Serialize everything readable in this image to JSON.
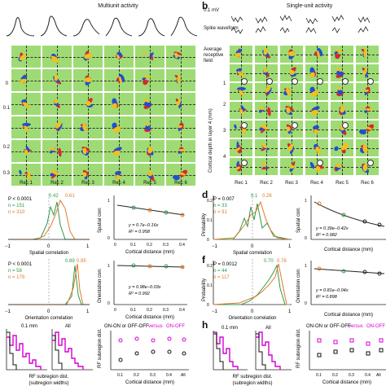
{
  "panel_a": {
    "label": "a",
    "title": "Multiunit activity",
    "depth_labels": [
      "0",
      "0.1",
      "0.2",
      "0.3"
    ],
    "columns": [
      "Rec 1",
      "Rec 2",
      "Rec 3",
      "Rec 4",
      "Rec 5",
      "Rec 6"
    ]
  },
  "panel_b": {
    "label": "b",
    "title": "Single-unit activity",
    "scale_label": "0.1 mV",
    "row1_label": "Spike waveform",
    "row2_label": "Average receptive field",
    "depth_axis_label": "Cortical depth in layer 4 (mm)",
    "unit_numbers": [
      "1",
      "2",
      "3",
      "4"
    ],
    "columns": [
      "Rec 1",
      "Rec 2",
      "Rec 3",
      "Rec 4",
      "Rec 5",
      "Rec 6"
    ]
  },
  "panel_c": {
    "label": "c",
    "stats": {
      "p": "P < 0.0001",
      "n1": "n = 151",
      "n2": "n = 310"
    },
    "peak1": "0.42",
    "peak2": "0.61",
    "xlabel": "Spatial correlation",
    "ticks": [
      "−1",
      "0",
      "1"
    ]
  },
  "panel_c2": {
    "ylabel": "Spatial corr.",
    "eq": "y = 0.7e−0.16x",
    "r2": "R² = 0.958",
    "xlabel": "Cortical distance (mm)",
    "xticks": [
      "0",
      "0.1",
      "0.2",
      "0.3",
      "0.4"
    ],
    "yticks": [
      "0",
      "0.5",
      "1"
    ]
  },
  "panel_d": {
    "label": "d",
    "stats": {
      "p": "P = 0.007",
      "n1": "n = 33",
      "n2": "n = 91"
    },
    "peak1": "0.1",
    "peak2": "0.26",
    "ylabel": "Probability",
    "xlabel": "Spatial correlation",
    "yticks": [
      "0",
      "0.1",
      "0.2"
    ],
    "ticks": [
      "−1",
      "0",
      "1"
    ]
  },
  "panel_d2": {
    "ylabel": "Spatial corr.",
    "eq": "y = 0.39e−0.42x",
    "r2": "R² = 0.982",
    "xlabel": "Cortical distance (mm)",
    "yticks": [
      "0",
      "0.5",
      "1"
    ]
  },
  "panel_e": {
    "stats": {
      "p": "P < 0.0001",
      "n1": "n = 58",
      "n2": "n = 178"
    },
    "peak1": "0.89",
    "peak2": "0.95",
    "xlabel": "Orientation correlation",
    "ticks": [
      "−1",
      "0",
      "1"
    ]
  },
  "panel_e2": {
    "ylabel": "Orientation corr.",
    "eq": "y = 0.98e−0.03x",
    "r2": "R² = 0.992",
    "xlabel": "Cortical distance (mm)",
    "xticks": [
      "0",
      "0.1",
      "0.2",
      "0.3",
      "0.4"
    ],
    "yticks": [
      "0",
      "0.5",
      "1"
    ]
  },
  "panel_f": {
    "label": "f",
    "stats": {
      "p": "P = 0.0012",
      "n1": "n = 44",
      "n2": "n = 117"
    },
    "peak1": "0.70",
    "peak2": "0.76",
    "ylabel": "Probability",
    "xlabel": "Orientation correlation",
    "yticks": [
      "0",
      "0.1",
      "0.2"
    ],
    "ticks": [
      "−1",
      "0",
      "1"
    ]
  },
  "panel_f2": {
    "ylabel": "Orientation corr.",
    "eq": "y = 0.81e−0.04x",
    "r2": "R² = 0.898",
    "xlabel": "Cortical distance (mm)",
    "yticks": [
      "0",
      "0.5",
      "1"
    ]
  },
  "panel_g": {
    "hist1": "0.1 mm",
    "hist2": "All",
    "xlabel1": "RF subregion dist.",
    "xlabel2": "(subregion widths)",
    "legend_a": "ON-ON or OFF-OFF",
    "legend_b": "versus",
    "legend_c": "ON-OFF",
    "ylabel": "RF subregion dist.",
    "xlabel": "Cortical distance (mm)",
    "xticks": [
      "0.1",
      "0.2",
      "0.3",
      "0.4",
      "All"
    ]
  },
  "panel_h": {
    "label": "h",
    "hist1": "0.1 mm",
    "hist2": "All",
    "xlabel1": "RF subregion dist.",
    "xlabel2": "(subregion widths)",
    "legend_a": "ON-ON or OFF-OFF",
    "legend_b": "versus",
    "legend_c": "ON-OFF",
    "ylabel": "RF subregion dist.",
    "xlabel": "Cortical distance (mm)",
    "xticks": [
      "0.1",
      "0.2",
      "0.3",
      "0.4",
      "All"
    ]
  },
  "colors": {
    "green": "#2e9a4a",
    "orange": "#e07a2b",
    "magenta": "#d400d4",
    "tile": "#9edb74"
  }
}
